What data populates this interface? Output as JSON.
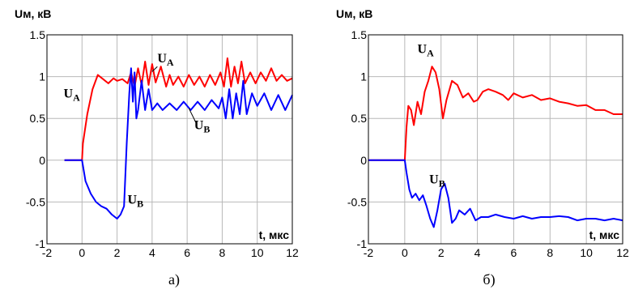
{
  "chart_data": [
    {
      "type": "line",
      "ylabel": "Uм, кВ",
      "xlabel": "t, мкс",
      "caption": "а)",
      "xlim": [
        -2,
        12
      ],
      "ylim": [
        -1,
        1.5
      ],
      "xticks": [
        "-2",
        "0",
        "2",
        "4",
        "6",
        "8",
        "10",
        "12"
      ],
      "yticks": [
        "1.5",
        "1",
        "0.5",
        "0",
        "-0.5",
        "-1"
      ],
      "grid": true,
      "colors": {
        "A": "#ff0000",
        "B": "#0000ff"
      },
      "annotations": [
        {
          "name": "U_A",
          "main": "U",
          "sub": "A",
          "at": [
            -1.05,
            0.75
          ]
        },
        {
          "name": "U_A",
          "main": "U",
          "sub": "A",
          "at": [
            4.3,
            1.17
          ]
        },
        {
          "name": "U_B",
          "main": "U",
          "sub": "B",
          "at": [
            2.6,
            -0.52
          ]
        },
        {
          "name": "U_B",
          "main": "U",
          "sub": "B",
          "at": [
            6.4,
            0.37
          ]
        }
      ],
      "series": [
        {
          "key": "A",
          "x": [
            -1.0,
            0.0,
            0.05,
            0.3,
            0.6,
            0.9,
            1.2,
            1.5,
            1.8,
            2.0,
            2.3,
            2.6,
            2.8,
            3.0,
            3.2,
            3.4,
            3.6,
            3.8,
            4.0,
            4.2,
            4.5,
            4.8,
            5.0,
            5.2,
            5.5,
            5.8,
            6.1,
            6.4,
            6.7,
            7.0,
            7.3,
            7.6,
            7.9,
            8.1,
            8.3,
            8.5,
            8.7,
            8.9,
            9.1,
            9.3,
            9.6,
            9.9,
            10.2,
            10.5,
            10.8,
            11.1,
            11.4,
            11.7,
            12.0
          ],
          "y": [
            0.0,
            0.0,
            0.2,
            0.55,
            0.85,
            1.02,
            0.97,
            0.92,
            0.98,
            0.95,
            0.97,
            0.92,
            1.05,
            0.88,
            1.1,
            0.9,
            1.18,
            0.9,
            1.15,
            0.93,
            1.12,
            0.88,
            1.02,
            0.9,
            1.0,
            0.88,
            1.02,
            0.9,
            1.0,
            0.88,
            1.02,
            0.9,
            1.05,
            0.88,
            1.22,
            0.88,
            1.12,
            0.92,
            1.18,
            0.92,
            1.05,
            0.92,
            1.05,
            0.95,
            1.1,
            0.95,
            1.02,
            0.95,
            0.98
          ]
        },
        {
          "key": "B",
          "x": [
            -1.0,
            0.0,
            0.2,
            0.5,
            0.8,
            1.1,
            1.4,
            1.7,
            2.0,
            2.2,
            2.4,
            2.55,
            2.7,
            2.8,
            2.9,
            3.0,
            3.1,
            3.2,
            3.4,
            3.6,
            3.8,
            4.0,
            4.3,
            4.6,
            5.0,
            5.4,
            5.8,
            6.2,
            6.6,
            7.0,
            7.4,
            7.8,
            8.0,
            8.2,
            8.4,
            8.6,
            8.8,
            9.0,
            9.2,
            9.4,
            9.7,
            10.0,
            10.4,
            10.8,
            11.2,
            11.6,
            12.0
          ],
          "y": [
            0.0,
            0.0,
            -0.25,
            -0.4,
            -0.5,
            -0.55,
            -0.58,
            -0.65,
            -0.7,
            -0.65,
            -0.55,
            0.2,
            0.8,
            1.1,
            0.7,
            1.05,
            0.5,
            0.6,
            0.95,
            0.6,
            0.85,
            0.6,
            0.68,
            0.6,
            0.68,
            0.6,
            0.7,
            0.6,
            0.7,
            0.6,
            0.72,
            0.62,
            0.75,
            0.5,
            0.85,
            0.5,
            0.8,
            0.55,
            0.95,
            0.55,
            0.8,
            0.65,
            0.8,
            0.6,
            0.78,
            0.6,
            0.78
          ]
        }
      ]
    },
    {
      "type": "line",
      "ylabel": "Uм, кВ",
      "xlabel": "t, мкс",
      "caption": "б)",
      "xlim": [
        -2,
        12
      ],
      "ylim": [
        -1,
        1.5
      ],
      "xticks": [
        "-2",
        "0",
        "2",
        "4",
        "6",
        "8",
        "10",
        "12"
      ],
      "yticks": [
        "1.5",
        "1",
        "0.5",
        "0",
        "-0.5",
        "-1"
      ],
      "grid": true,
      "colors": {
        "A": "#ff0000",
        "B": "#0000ff"
      },
      "annotations": [
        {
          "name": "U_A",
          "main": "U",
          "sub": "A",
          "at": [
            0.7,
            1.28
          ]
        },
        {
          "name": "U_B",
          "main": "U",
          "sub": "B",
          "at": [
            1.35,
            -0.28
          ]
        }
      ],
      "series": [
        {
          "key": "A",
          "x": [
            -2.0,
            0.0,
            0.1,
            0.2,
            0.35,
            0.5,
            0.7,
            0.9,
            1.1,
            1.3,
            1.5,
            1.7,
            1.9,
            2.1,
            2.3,
            2.6,
            2.9,
            3.2,
            3.5,
            3.8,
            4.0,
            4.3,
            4.6,
            5.0,
            5.4,
            5.7,
            6.0,
            6.5,
            7.0,
            7.5,
            8.0,
            8.5,
            9.0,
            9.5,
            10.0,
            10.5,
            11.0,
            11.5,
            12.0
          ],
          "y": [
            0.0,
            0.0,
            0.4,
            0.65,
            0.6,
            0.42,
            0.7,
            0.55,
            0.82,
            0.95,
            1.12,
            1.05,
            0.85,
            0.5,
            0.72,
            0.95,
            0.9,
            0.75,
            0.8,
            0.7,
            0.72,
            0.82,
            0.85,
            0.82,
            0.78,
            0.72,
            0.8,
            0.75,
            0.78,
            0.72,
            0.74,
            0.7,
            0.68,
            0.65,
            0.66,
            0.6,
            0.6,
            0.55,
            0.55
          ]
        },
        {
          "key": "B",
          "x": [
            -2.0,
            0.0,
            0.1,
            0.25,
            0.4,
            0.6,
            0.8,
            1.0,
            1.2,
            1.4,
            1.6,
            1.8,
            2.0,
            2.2,
            2.4,
            2.6,
            2.8,
            3.0,
            3.3,
            3.6,
            3.9,
            4.2,
            4.6,
            5.0,
            5.5,
            6.0,
            6.5,
            7.0,
            7.5,
            8.0,
            8.5,
            9.0,
            9.5,
            10.0,
            10.5,
            11.0,
            11.5,
            12.0
          ],
          "y": [
            0.0,
            0.0,
            -0.15,
            -0.35,
            -0.45,
            -0.4,
            -0.48,
            -0.42,
            -0.55,
            -0.7,
            -0.8,
            -0.6,
            -0.35,
            -0.28,
            -0.45,
            -0.75,
            -0.7,
            -0.6,
            -0.65,
            -0.58,
            -0.72,
            -0.68,
            -0.68,
            -0.65,
            -0.68,
            -0.7,
            -0.67,
            -0.7,
            -0.68,
            -0.68,
            -0.67,
            -0.68,
            -0.72,
            -0.7,
            -0.7,
            -0.72,
            -0.7,
            -0.72
          ]
        }
      ]
    }
  ]
}
